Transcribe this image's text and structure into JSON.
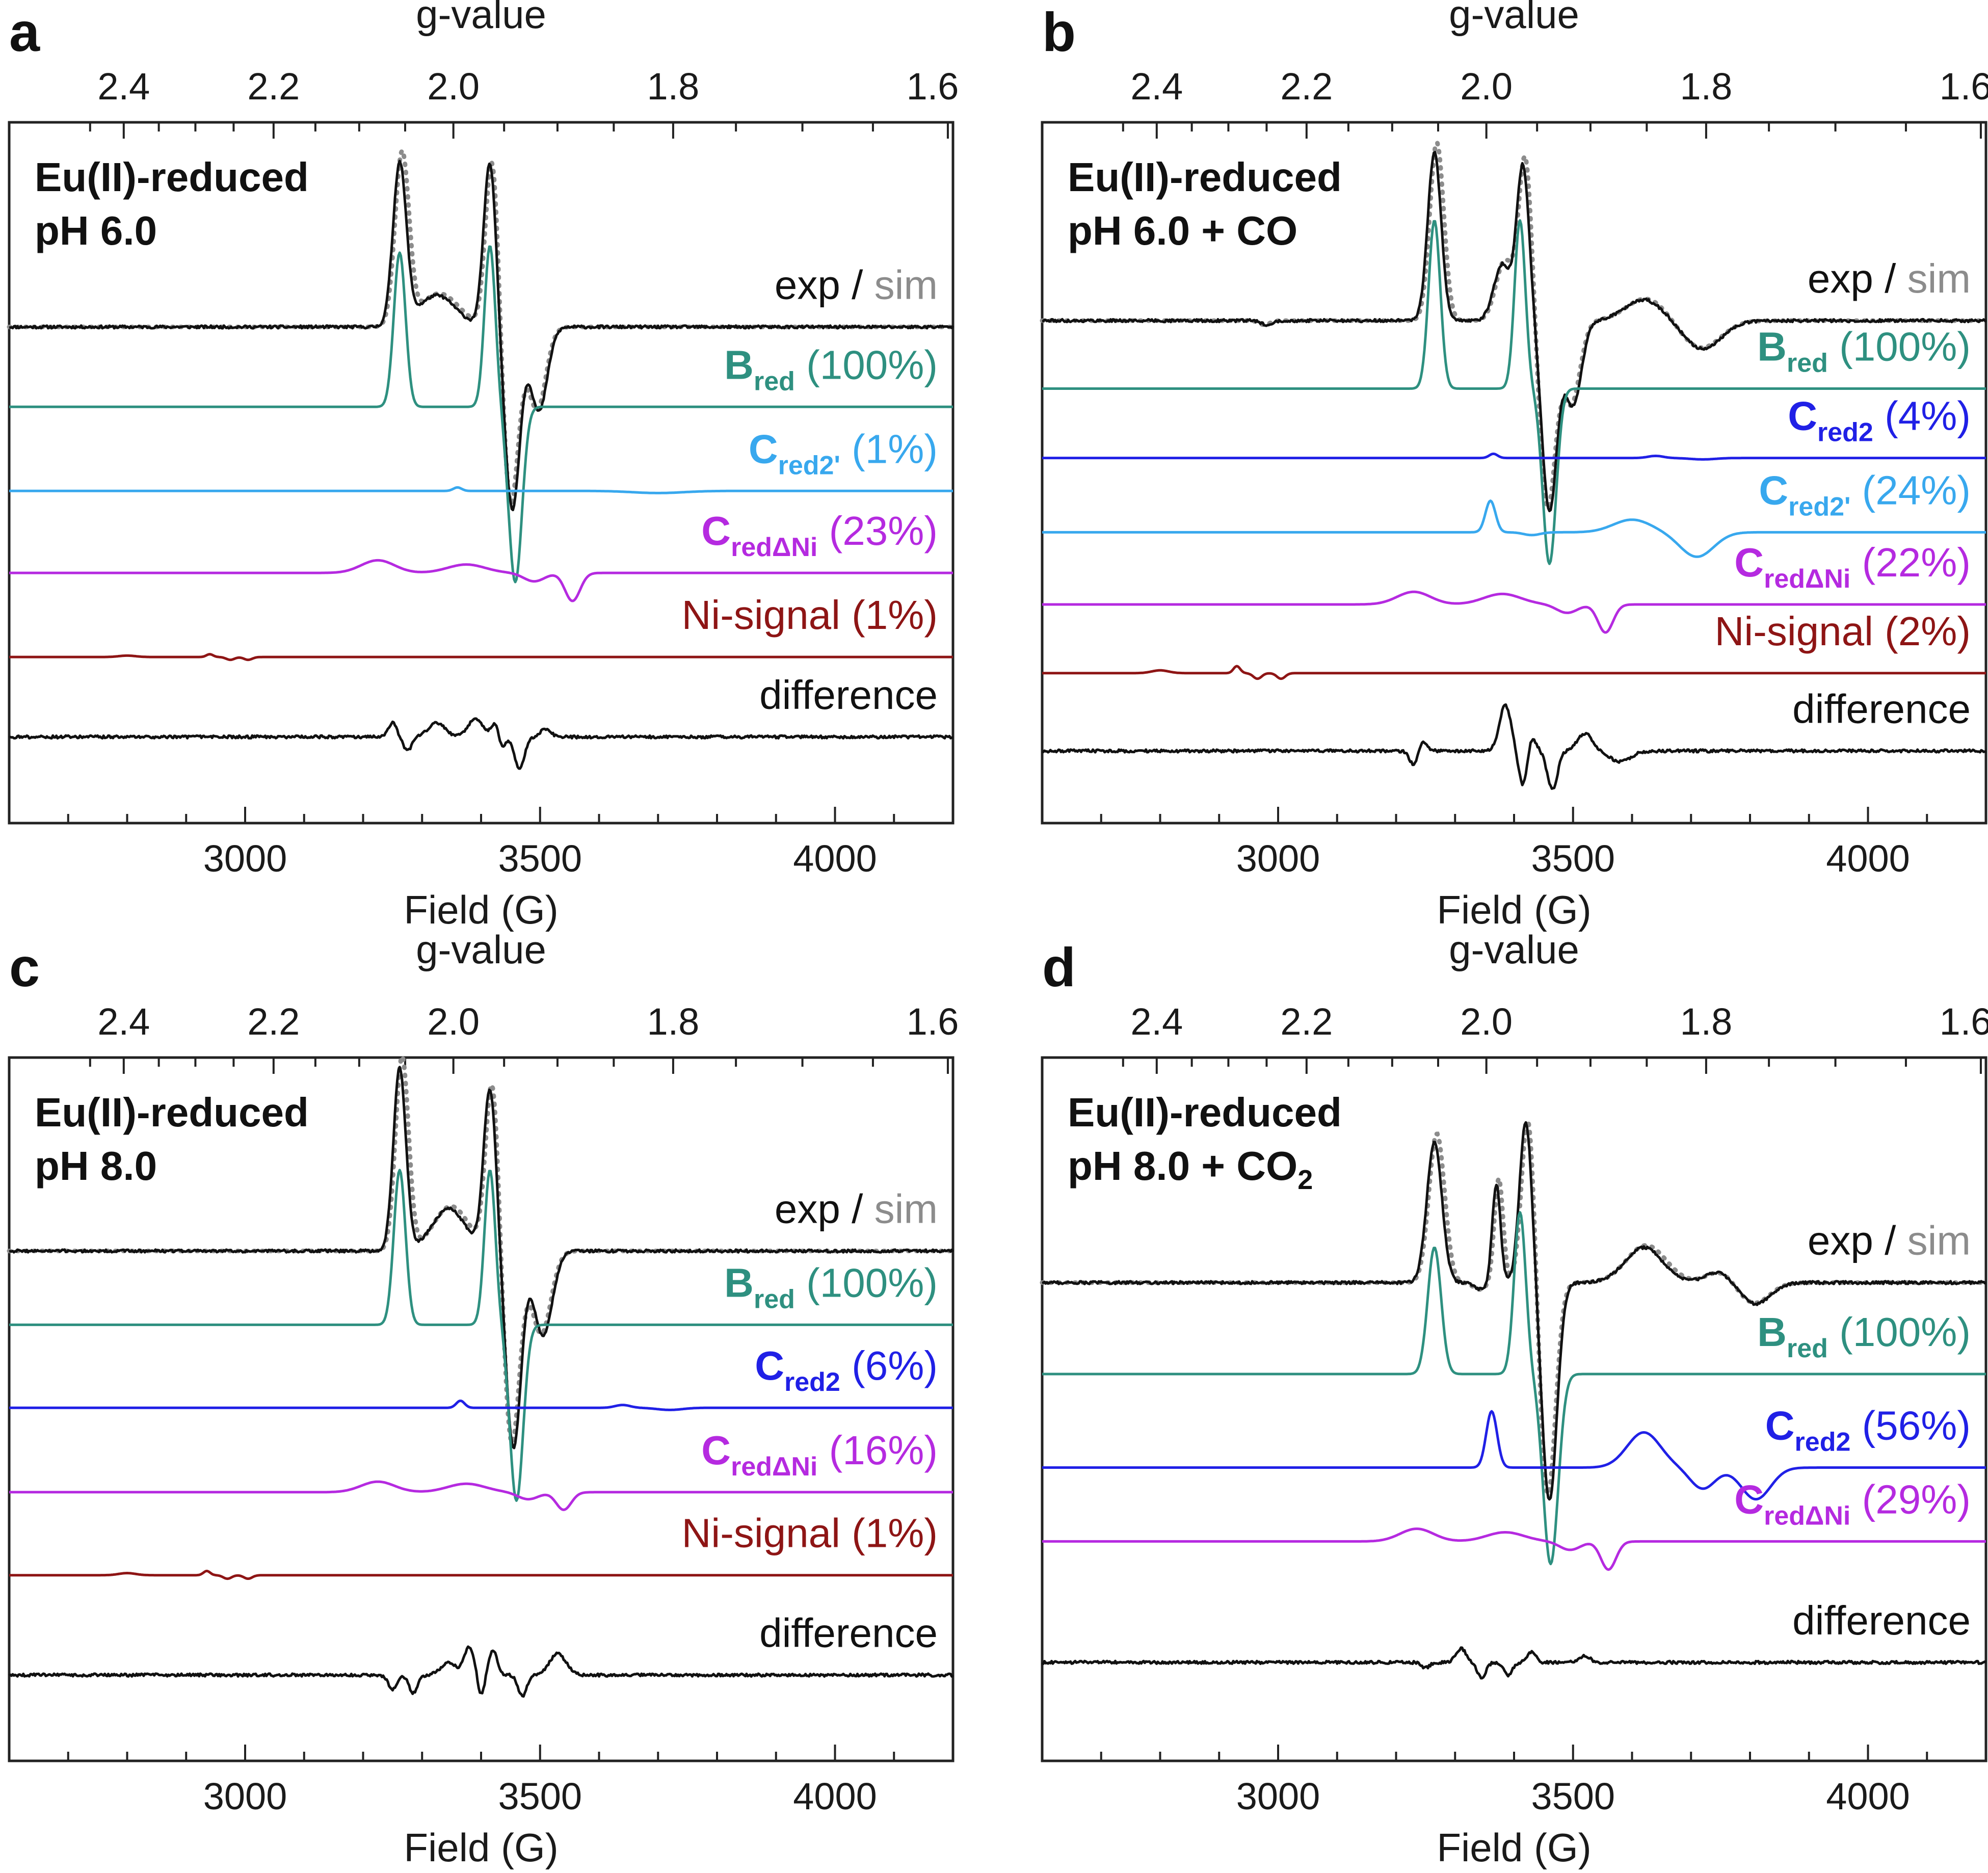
{
  "figure": {
    "top_axis_label": "g-value",
    "bottom_axis_label": "Field (G)",
    "field_ticks": [
      "3000",
      "3500",
      "4000"
    ],
    "g_ticks": [
      "2.4",
      "2.2",
      "2.0",
      "1.8",
      "1.6"
    ]
  },
  "colors": {
    "exp": "#111111",
    "sim": "#8c8c8c",
    "Bred": "#2e9080",
    "Cred2": "#2020e6",
    "Cred2prime": "#38a8ee",
    "CredDNi": "#b52ae0",
    "Ni": "#8e1515",
    "diff": "#111111"
  },
  "chart_data": [
    {
      "type": "line",
      "panel": "a",
      "title": [
        "Eu(II)-reduced",
        "pH 6.0"
      ],
      "xlabel": "Field (G)",
      "top_xlabel": "g-value",
      "xlim": [
        2600,
        4200
      ],
      "x_ticks": [
        3000,
        3500,
        4000
      ],
      "g_ticks": [
        2.4,
        2.2,
        2.0,
        1.8,
        1.6
      ],
      "series": [
        {
          "name": "exp",
          "sim_name": "sim",
          "label": {
            "main": "exp",
            "sep": " / ",
            "sim": "sim"
          },
          "baseline_rel": 0.292,
          "color_key": "exp",
          "peaks": [
            [
              3262,
              0.23,
              16
            ],
            [
              3415,
              0.235,
              15
            ],
            [
              3325,
              0.045,
              45
            ]
          ],
          "trough": [
            [
              3453,
              -0.26,
              18
            ],
            [
              3498,
              -0.12,
              20
            ]
          ],
          "step": 0
        },
        {
          "name": "Bred",
          "label": {
            "main": "B",
            "sub": "red",
            "pct": " (100%)"
          },
          "baseline_rel": 0.406,
          "color_key": "Bred",
          "peaks": [
            [
              3262,
              0.22,
              14
            ],
            [
              3415,
              0.23,
              13
            ]
          ],
          "trough": [
            [
              3458,
              -0.25,
              16
            ]
          ],
          "step": 0
        },
        {
          "name": "Cred2'",
          "label": {
            "main": "C",
            "sub": "red2'",
            "pct": " (1%)"
          },
          "baseline_rel": 0.526,
          "color_key": "Cred2prime",
          "peaks": [
            [
              3360,
              0.005,
              10
            ]
          ],
          "trough": [
            [
              3700,
              -0.003,
              60
            ]
          ],
          "step": 0
        },
        {
          "name": "CredΔNi",
          "label": {
            "main": "C",
            "sub": "redΔNi",
            "pct": " (23%)"
          },
          "baseline_rel": 0.643,
          "color_key": "CredDNi",
          "peaks": [
            [
              3225,
              0.018,
              40
            ],
            [
              3375,
              0.012,
              45
            ]
          ],
          "trough": [
            [
              3490,
              -0.012,
              25
            ],
            [
              3555,
              -0.04,
              18
            ]
          ],
          "step": 0
        },
        {
          "name": "Ni-signal",
          "label": {
            "main": "Ni-signal",
            "pct": " (1%)"
          },
          "baseline_rel": 0.763,
          "color_key": "Ni",
          "peaks": [
            [
              2800,
              0.002,
              20
            ],
            [
              2940,
              0.004,
              8
            ]
          ],
          "trough": [
            [
              2975,
              -0.004,
              10
            ],
            [
              3005,
              -0.004,
              10
            ]
          ],
          "step": 0
        },
        {
          "name": "difference",
          "label": {
            "main": "difference"
          },
          "baseline_rel": 0.877,
          "color_key": "diff",
          "peaks": [
            [
              3250,
              0.02,
              10
            ],
            [
              3325,
              0.02,
              20
            ],
            [
              3390,
              0.025,
              18
            ],
            [
              3425,
              0.02,
              10
            ],
            [
              3510,
              0.012,
              12
            ]
          ],
          "trough": [
            [
              3275,
              -0.02,
              10
            ],
            [
              3465,
              -0.045,
              12
            ],
            [
              3435,
              -0.02,
              8
            ]
          ],
          "step": 0
        }
      ]
    },
    {
      "type": "line",
      "panel": "b",
      "title": [
        "Eu(II)-reduced",
        "pH 6.0 + CO"
      ],
      "xlabel": "Field (G)",
      "top_xlabel": "g-value",
      "xlim": [
        2600,
        4200
      ],
      "x_ticks": [
        3000,
        3500,
        4000
      ],
      "g_ticks": [
        2.4,
        2.2,
        2.0,
        1.8,
        1.6
      ],
      "series": [
        {
          "name": "exp",
          "sim_name": "sim",
          "label": {
            "main": "exp",
            "sep": " / ",
            "sim": "sim"
          },
          "baseline_rel": 0.283,
          "color_key": "exp",
          "peaks": [
            [
              3265,
              0.24,
              16
            ],
            [
              3415,
              0.22,
              15
            ],
            [
              3380,
              0.08,
              20
            ],
            [
              3620,
              0.03,
              45
            ]
          ],
          "trough": [
            [
              3460,
              -0.27,
              18
            ],
            [
              3500,
              -0.12,
              20
            ],
            [
              3720,
              -0.04,
              45
            ],
            [
              2980,
              -0.006,
              12
            ]
          ],
          "step": 0
        },
        {
          "name": "Bred",
          "label": {
            "main": "B",
            "sub": "red",
            "pct": " (100%)"
          },
          "baseline_rel": 0.38,
          "color_key": "Bred",
          "peaks": [
            [
              3265,
              0.24,
              14
            ],
            [
              3410,
              0.24,
              13
            ]
          ],
          "trough": [
            [
              3460,
              -0.25,
              16
            ]
          ],
          "step": 0
        },
        {
          "name": "Cred2",
          "label": {
            "main": "C",
            "sub": "red2",
            "pct": " (4%)"
          },
          "baseline_rel": 0.479,
          "color_key": "Cred2",
          "peaks": [
            [
              3365,
              0.006,
              10
            ],
            [
              3640,
              0.003,
              18
            ]
          ],
          "trough": [
            [
              3720,
              -0.002,
              30
            ]
          ],
          "step": 0
        },
        {
          "name": "Cred2'",
          "label": {
            "main": "C",
            "sub": "red2'",
            "pct": " (24%)"
          },
          "baseline_rel": 0.585,
          "color_key": "Cred2prime",
          "peaks": [
            [
              3360,
              0.045,
              12
            ],
            [
              3600,
              0.018,
              45
            ]
          ],
          "trough": [
            [
              3710,
              -0.035,
              40
            ],
            [
              3430,
              -0.004,
              20
            ]
          ],
          "step": 0
        },
        {
          "name": "CredΔNi",
          "label": {
            "main": "C",
            "sub": "redΔNi",
            "pct": " (22%)"
          },
          "baseline_rel": 0.688,
          "color_key": "CredDNi",
          "peaks": [
            [
              3230,
              0.018,
              40
            ],
            [
              3380,
              0.015,
              45
            ]
          ],
          "trough": [
            [
              3490,
              -0.012,
              25
            ],
            [
              3555,
              -0.04,
              18
            ]
          ],
          "step": 0
        },
        {
          "name": "Ni-signal",
          "label": {
            "main": "Ni-signal",
            "pct": " (2%)"
          },
          "baseline_rel": 0.786,
          "color_key": "Ni",
          "peaks": [
            [
              2800,
              0.004,
              20
            ],
            [
              2930,
              0.01,
              8
            ]
          ],
          "trough": [
            [
              2965,
              -0.008,
              10
            ],
            [
              3005,
              -0.008,
              10
            ]
          ],
          "step": 0
        },
        {
          "name": "difference",
          "label": {
            "main": "difference"
          },
          "baseline_rel": 0.897,
          "color_key": "diff",
          "peaks": [
            [
              3245,
              0.015,
              10
            ],
            [
              3385,
              0.065,
              14
            ],
            [
              3430,
              0.02,
              10
            ],
            [
              3520,
              0.025,
              18
            ]
          ],
          "trough": [
            [
              3230,
              -0.02,
              10
            ],
            [
              3415,
              -0.05,
              10
            ],
            [
              3465,
              -0.055,
              12
            ],
            [
              3580,
              -0.015,
              25
            ]
          ],
          "step": 0
        }
      ]
    },
    {
      "type": "line",
      "panel": "c",
      "title": [
        "Eu(II)-reduced",
        "pH 8.0"
      ],
      "xlabel": "Field (G)",
      "top_xlabel": "g-value",
      "xlim": [
        2600,
        4200
      ],
      "x_ticks": [
        3000,
        3500,
        4000
      ],
      "g_ticks": [
        2.4,
        2.2,
        2.0,
        1.8,
        1.6
      ],
      "series": [
        {
          "name": "exp",
          "sim_name": "sim",
          "label": {
            "main": "exp",
            "sep": " / ",
            "sim": "sim"
          },
          "baseline_rel": 0.275,
          "color_key": "exp",
          "peaks": [
            [
              3262,
              0.26,
              15
            ],
            [
              3415,
              0.23,
              15
            ],
            [
              3345,
              0.06,
              40
            ]
          ],
          "trough": [
            [
              3455,
              -0.28,
              18
            ],
            [
              3505,
              -0.12,
              22
            ]
          ],
          "step": 0
        },
        {
          "name": "Bred",
          "label": {
            "main": "B",
            "sub": "red",
            "pct": " (100%)"
          },
          "baseline_rel": 0.38,
          "color_key": "Bred",
          "peaks": [
            [
              3262,
              0.22,
              14
            ],
            [
              3415,
              0.22,
              13
            ]
          ],
          "trough": [
            [
              3460,
              -0.25,
              16
            ]
          ],
          "step": 0
        },
        {
          "name": "Cred2",
          "label": {
            "main": "C",
            "sub": "red2",
            "pct": " (6%)"
          },
          "baseline_rel": 0.498,
          "color_key": "Cred2",
          "peaks": [
            [
              3365,
              0.01,
              10
            ],
            [
              3640,
              0.004,
              18
            ]
          ],
          "trough": [
            [
              3720,
              -0.003,
              30
            ]
          ],
          "step": 0
        },
        {
          "name": "CredΔNi",
          "label": {
            "main": "C",
            "sub": "redΔNi",
            "pct": " (16%)"
          },
          "baseline_rel": 0.618,
          "color_key": "CredDNi",
          "peaks": [
            [
              3225,
              0.015,
              40
            ],
            [
              3375,
              0.012,
              45
            ]
          ],
          "trough": [
            [
              3480,
              -0.01,
              25
            ],
            [
              3540,
              -0.025,
              18
            ]
          ],
          "step": 0
        },
        {
          "name": "Ni-signal",
          "label": {
            "main": "Ni-signal",
            "pct": " (1%)"
          },
          "baseline_rel": 0.736,
          "color_key": "Ni",
          "peaks": [
            [
              2800,
              0.003,
              20
            ],
            [
              2935,
              0.006,
              8
            ]
          ],
          "trough": [
            [
              2970,
              -0.005,
              10
            ],
            [
              3005,
              -0.005,
              10
            ]
          ],
          "step": 0
        },
        {
          "name": "difference",
          "label": {
            "main": "difference"
          },
          "baseline_rel": 0.878,
          "color_key": "diff",
          "peaks": [
            [
              3345,
              0.018,
              18
            ],
            [
              3380,
              0.04,
              12
            ],
            [
              3420,
              0.035,
              10
            ],
            [
              3530,
              0.03,
              20
            ]
          ],
          "trough": [
            [
              3250,
              -0.02,
              10
            ],
            [
              3285,
              -0.025,
              10
            ],
            [
              3400,
              -0.03,
              8
            ],
            [
              3470,
              -0.03,
              10
            ]
          ],
          "step": 0
        }
      ]
    },
    {
      "type": "line",
      "panel": "d",
      "title": [
        "Eu(II)-reduced",
        "pH 8.0 + CO",
        "2"
      ],
      "xlabel": "Field (G)",
      "top_xlabel": "g-value",
      "xlim": [
        2600,
        4200
      ],
      "x_ticks": [
        3000,
        3500,
        4000
      ],
      "g_ticks": [
        2.4,
        2.2,
        2.0,
        1.8,
        1.6
      ],
      "series": [
        {
          "name": "exp",
          "sim_name": "sim",
          "label": {
            "main": "exp",
            "sep": " / ",
            "sim": "sim"
          },
          "baseline_rel": 0.32,
          "color_key": "exp",
          "peaks": [
            [
              3265,
              0.2,
              18
            ],
            [
              3370,
              0.14,
              10
            ],
            [
              3420,
              0.23,
              15
            ],
            [
              3620,
              0.05,
              45
            ],
            [
              3745,
              0.015,
              30
            ]
          ],
          "trough": [
            [
              3345,
              -0.01,
              15
            ],
            [
              3460,
              -0.31,
              18
            ],
            [
              3810,
              -0.03,
              35
            ]
          ],
          "step": 0
        },
        {
          "name": "Bred",
          "label": {
            "main": "B",
            "sub": "red",
            "pct": " (100%)"
          },
          "baseline_rel": 0.45,
          "color_key": "Bred",
          "peaks": [
            [
              3265,
              0.18,
              16
            ],
            [
              3410,
              0.23,
              14
            ]
          ],
          "trough": [
            [
              3462,
              -0.27,
              18
            ]
          ],
          "step": 0
        },
        {
          "name": "Cred2",
          "label": {
            "main": "C",
            "sub": "red2",
            "pct": " (56%)"
          },
          "baseline_rel": 0.583,
          "color_key": "Cred2",
          "peaks": [
            [
              3362,
              0.08,
              13
            ],
            [
              3620,
              0.05,
              40
            ]
          ],
          "trough": [
            [
              3720,
              -0.03,
              30
            ],
            [
              3810,
              -0.045,
              35
            ]
          ],
          "step": 0
        },
        {
          "name": "CredΔNi",
          "label": {
            "main": "C",
            "sub": "redΔNi",
            "pct": " (29%)"
          },
          "baseline_rel": 0.688,
          "color_key": "CredDNi",
          "peaks": [
            [
              3235,
              0.018,
              40
            ],
            [
              3385,
              0.013,
              45
            ]
          ],
          "trough": [
            [
              3495,
              -0.012,
              25
            ],
            [
              3560,
              -0.04,
              18
            ]
          ],
          "step": 0
        },
        {
          "name": "difference",
          "label": {
            "main": "difference"
          },
          "baseline_rel": 0.86,
          "color_key": "diff",
          "peaks": [
            [
              3310,
              0.02,
              12
            ],
            [
              3430,
              0.015,
              10
            ],
            [
              3520,
              0.01,
              12
            ]
          ],
          "trough": [
            [
              3250,
              -0.008,
              10
            ],
            [
              3345,
              -0.022,
              10
            ],
            [
              3390,
              -0.018,
              10
            ]
          ],
          "step": 0
        }
      ]
    }
  ]
}
